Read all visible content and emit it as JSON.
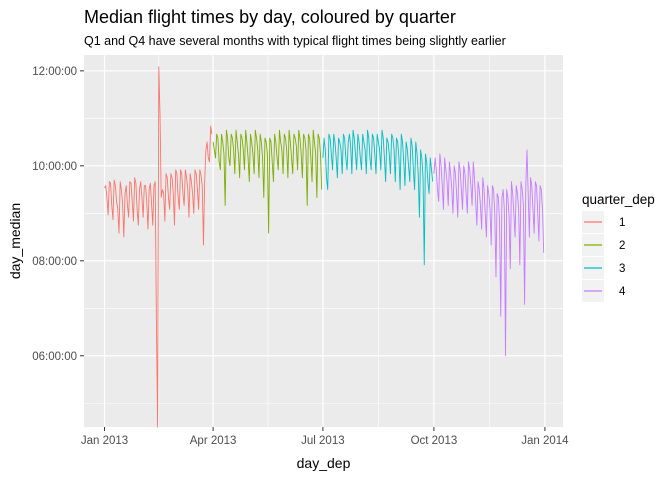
{
  "chart_data": {
    "type": "line",
    "title": "Median flight times by day, coloured by quarter",
    "subtitle": "Q1 and Q4 have several months with typical flight times being slightly earlier",
    "xlabel": "day_dep",
    "ylabel": "day_median",
    "x_range": [
      "2012-12-15",
      "2014-01-16"
    ],
    "y_range": [
      "04:30:00",
      "12:20:00"
    ],
    "x_ticks": [
      "Jan 2013",
      "Apr 2013",
      "Jul 2013",
      "Oct 2013",
      "Jan 2014"
    ],
    "y_ticks": [
      "06:00:00",
      "08:00:00",
      "10:00:00",
      "12:00:00"
    ],
    "grid": true,
    "legend": {
      "title": "quarter_dep",
      "position": "right",
      "entries": [
        {
          "label": "1",
          "color": "#F8766D"
        },
        {
          "label": "2",
          "color": "#7CAE00"
        },
        {
          "label": "3",
          "color": "#00BFC4"
        },
        {
          "label": "4",
          "color": "#C77CFF"
        }
      ]
    },
    "series": [
      {
        "name": "1",
        "color": "#F8766D",
        "x_start": "2013-01-01",
        "x_end": "2013-03-31",
        "values": [
          "09:32:00",
          "09:35:00",
          "09:20:00",
          "08:58:00",
          "09:40:00",
          "09:38:00",
          "09:10:00",
          "08:52:00",
          "09:42:00",
          "09:35:00",
          "09:15:00",
          "09:05:00",
          "08:35:00",
          "09:40:00",
          "09:30:00",
          "09:12:00",
          "08:30:00",
          "09:25:00",
          "09:35:00",
          "09:10:00",
          "08:55:00",
          "09:40:00",
          "09:38:00",
          "09:15:00",
          "08:50:00",
          "09:45:00",
          "09:38:00",
          "09:05:00",
          "08:45:00",
          "09:30:00",
          "09:40:00",
          "09:20:00",
          "08:55:00",
          "09:35:00",
          "09:35:00",
          "09:15:00",
          "08:40:00",
          "09:30:00",
          "09:38:00",
          "09:12:00",
          "08:45:00",
          "09:35:00",
          "09:40:00",
          "06:45:00",
          "04:30:00",
          "12:05:00",
          "11:05:00",
          "09:20:00",
          "09:30:00",
          "09:25:00",
          "08:50:00",
          "09:50:00",
          "09:45:00",
          "09:20:00",
          "09:05:00",
          "09:50:00",
          "09:45:00",
          "09:25:00",
          "08:45:00",
          "09:55:00",
          "09:50:00",
          "09:20:00",
          "09:05:00",
          "09:55:00",
          "09:50:00",
          "09:25:00",
          "09:10:00",
          "09:55:00",
          "09:45:00",
          "09:30:00",
          "08:55:00",
          "09:50:00",
          "09:40:00",
          "09:25:00",
          "09:00:00",
          "09:55:00",
          "09:50:00",
          "09:30:00",
          "09:05:00",
          "09:55:00",
          "09:48:00",
          "09:35:00",
          "08:20:00",
          "09:40:00",
          "10:20:00",
          "10:30:00",
          "10:10:00",
          "10:05:00",
          "10:50:00",
          "10:40:00"
        ]
      },
      {
        "name": "2",
        "color": "#7CAE00",
        "x_start": "2013-04-01",
        "x_end": "2013-06-30",
        "values": [
          "10:30:00",
          "10:20:00",
          "10:10:00",
          "10:40:00",
          "10:35:00",
          "10:05:00",
          "09:55:00",
          "10:40:00",
          "10:30:00",
          "10:15:00",
          "09:10:00",
          "10:45:00",
          "10:35:00",
          "10:10:00",
          "10:00:00",
          "10:40:00",
          "10:35:00",
          "10:20:00",
          "09:50:00",
          "10:45:00",
          "10:30:00",
          "10:15:00",
          "09:45:00",
          "10:40:00",
          "10:35:00",
          "10:20:00",
          "09:55:00",
          "10:45:00",
          "10:30:00",
          "10:10:00",
          "09:40:00",
          "10:40:00",
          "10:30:00",
          "10:15:00",
          "09:50:00",
          "10:45:00",
          "10:35:00",
          "10:20:00",
          "09:45:00",
          "10:40:00",
          "10:30:00",
          "10:10:00",
          "09:20:00",
          "10:35:00",
          "10:30:00",
          "10:15:00",
          "08:35:00",
          "10:35:00",
          "10:30:00",
          "10:05:00",
          "09:40:00",
          "10:40:00",
          "10:30:00",
          "10:10:00",
          "09:55:00",
          "10:45:00",
          "10:30:00",
          "10:20:00",
          "09:50:00",
          "10:40:00",
          "10:35:00",
          "10:20:00",
          "09:45:00",
          "10:45:00",
          "10:30:00",
          "10:10:00",
          "09:50:00",
          "10:40:00",
          "10:35:00",
          "10:25:00",
          "09:55:00",
          "10:45:00",
          "10:35:00",
          "10:15:00",
          "09:45:00",
          "10:40:00",
          "10:35:00",
          "10:20:00",
          "09:10:00",
          "10:40:00",
          "10:35:00",
          "10:10:00",
          "09:40:00",
          "10:45:00",
          "10:30:00",
          "10:15:00",
          "09:20:00",
          "10:40:00",
          "10:35:00",
          "10:15:00",
          "09:30:00"
        ]
      },
      {
        "name": "3",
        "color": "#00BFC4",
        "x_start": "2013-07-01",
        "x_end": "2013-09-30",
        "values": [
          "10:10:00",
          "10:35:00",
          "10:20:00",
          "09:45:00",
          "09:30:00",
          "10:40:00",
          "10:35:00",
          "10:15:00",
          "09:55:00",
          "10:40:00",
          "10:30:00",
          "10:10:00",
          "09:45:00",
          "10:35:00",
          "10:30:00",
          "10:20:00",
          "09:50:00",
          "10:40:00",
          "10:35:00",
          "10:10:00",
          "09:55:00",
          "10:30:00",
          "10:40:00",
          "10:25:00",
          "09:50:00",
          "10:45:00",
          "10:35:00",
          "10:15:00",
          "09:55:00",
          "10:40:00",
          "10:30:00",
          "10:10:00",
          "09:55:00",
          "10:40:00",
          "10:30:00",
          "10:20:00",
          "09:50:00",
          "10:45:00",
          "10:35:00",
          "10:10:00",
          "09:55:00",
          "10:40:00",
          "10:35:00",
          "10:15:00",
          "09:50:00",
          "10:40:00",
          "10:30:00",
          "10:20:00",
          "09:55:00",
          "10:45:00",
          "10:35:00",
          "10:10:00",
          "09:40:00",
          "10:35:00",
          "10:30:00",
          "10:15:00",
          "09:50:00",
          "10:40:00",
          "10:35:00",
          "10:20:00",
          "09:40:00",
          "10:35:00",
          "10:30:00",
          "10:10:00",
          "09:30:00",
          "10:40:00",
          "10:30:00",
          "10:05:00",
          "09:35:00",
          "10:30:00",
          "10:20:00",
          "10:00:00",
          "09:40:00",
          "10:35:00",
          "10:25:00",
          "09:55:00",
          "09:30:00",
          "10:30:00",
          "10:15:00",
          "09:50:00",
          "08:55:00",
          "10:20:00",
          "10:10:00",
          "09:45:00",
          "07:55:00",
          "10:15:00",
          "10:05:00",
          "09:40:00",
          "09:25:00",
          "10:10:00",
          "09:55:00",
          "09:40:00"
        ]
      },
      {
        "name": "4",
        "color": "#C77CFF",
        "x_start": "2013-10-01",
        "x_end": "2013-12-31",
        "values": [
          "09:50:00",
          "10:10:00",
          "09:55:00",
          "09:30:00",
          "09:15:00",
          "10:15:00",
          "10:00:00",
          "09:35:00",
          "09:05:00",
          "10:10:00",
          "09:55:00",
          "09:40:00",
          "09:10:00",
          "10:05:00",
          "09:50:00",
          "09:30:00",
          "09:00:00",
          "10:00:00",
          "09:50:00",
          "09:25:00",
          "08:55:00",
          "10:05:00",
          "09:55:00",
          "09:30:00",
          "09:05:00",
          "10:00:00",
          "09:50:00",
          "09:25:00",
          "09:00:00",
          "10:05:00",
          "09:55:00",
          "09:35:00",
          "09:10:00",
          "10:05:00",
          "09:45:00",
          "09:15:00",
          "08:45:00",
          "09:40:00",
          "09:30:00",
          "09:10:00",
          "08:40:00",
          "09:45:00",
          "09:30:00",
          "09:00:00",
          "08:30:00",
          "09:35:00",
          "09:25:00",
          "09:05:00",
          "08:20:00",
          "09:35:00",
          "09:30:00",
          "09:00:00",
          "07:40:00",
          "09:25:00",
          "09:20:00",
          "08:50:00",
          "06:50:00",
          "09:20:00",
          "09:30:00",
          "09:05:00",
          "06:00:00",
          "09:30:00",
          "09:20:00",
          "08:55:00",
          "07:50:00",
          "09:40:00",
          "09:25:00",
          "09:00:00",
          "08:30:00",
          "09:35:00",
          "09:25:00",
          "09:05:00",
          "07:55:00",
          "09:40:00",
          "09:30:00",
          "09:10:00",
          "07:05:00",
          "09:35:00",
          "10:20:00",
          "09:25:00",
          "08:30:00",
          "09:45:00",
          "09:35:00",
          "09:05:00",
          "08:35:00",
          "09:40:00",
          "09:35:00",
          "09:00:00",
          "08:25:00",
          "09:35:00",
          "09:30:00",
          "09:05:00",
          "08:10:00"
        ]
      }
    ]
  }
}
